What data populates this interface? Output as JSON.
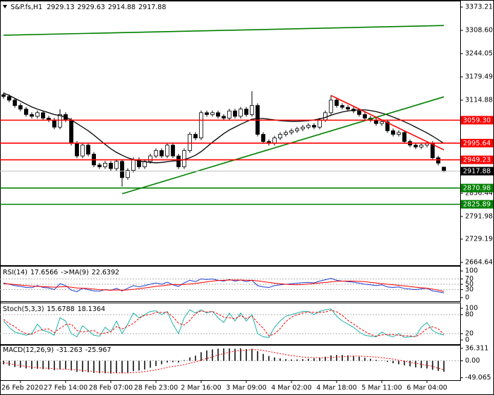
{
  "chart_data": [
    {
      "type": "candlestick",
      "title": "S&P.fs,H1",
      "categories": [
        null,
        null,
        null,
        "26 Feb 2020",
        null,
        null,
        null,
        null,
        null,
        null,
        null,
        "27 Feb 14:00",
        null,
        null,
        null,
        null,
        null,
        null,
        null,
        "28 Feb 07:00",
        null,
        null,
        null,
        null,
        null,
        null,
        null,
        "28 Feb 23:00",
        null,
        null,
        null,
        null,
        null,
        null,
        null,
        "2 Mar 16:00",
        null,
        null,
        null,
        null,
        null,
        null,
        null,
        "3 Mar 09:00",
        null,
        null,
        null,
        null,
        null,
        null,
        null,
        "4 Mar 02:00",
        null,
        null,
        null,
        null,
        null,
        null,
        null,
        "4 Mar 18:00",
        null,
        null,
        null,
        null,
        null,
        null,
        null,
        "5 Mar 11:00",
        null,
        null,
        null,
        null,
        null,
        null,
        null,
        "6 Mar 04:00",
        null,
        null,
        null
      ],
      "open": [
        3130,
        3125,
        3115,
        3100,
        3090,
        3075,
        3070,
        3080,
        3065,
        3060,
        3040,
        3075,
        3060,
        2995,
        2960,
        2990,
        2965,
        2935,
        2930,
        2940,
        2925,
        2945,
        2900,
        2920,
        2950,
        2930,
        2945,
        2960,
        2975,
        2960,
        2990,
        2960,
        2930,
        2975,
        3020,
        3010,
        3080,
        3075,
        3080,
        3070,
        3065,
        3085,
        3070,
        3090,
        3075,
        3100,
        3020,
        3000,
        2995,
        3010,
        3020,
        3025,
        3030,
        3035,
        3040,
        3045,
        3040,
        3060,
        3080,
        3115,
        3100,
        3095,
        3090,
        3085,
        3075,
        3065,
        3060,
        3050,
        3055,
        3030,
        3020,
        3025,
        3000,
        2990,
        2985,
        2990,
        2995,
        2955,
        2929.13
      ],
      "high": [
        3136,
        3131,
        3121,
        3106,
        3096,
        3081,
        3086,
        3086,
        3071,
        3066,
        3090,
        3081,
        3066,
        3001,
        2996,
        2996,
        2971,
        2941,
        2946,
        2946,
        2951,
        2951,
        2926,
        2956,
        2956,
        2951,
        2966,
        2981,
        2981,
        2996,
        2996,
        2966,
        2981,
        3026,
        3026,
        3086,
        3086,
        3086,
        3086,
        3076,
        3091,
        3091,
        3096,
        3096,
        3140,
        3106,
        3026,
        3006,
        3016,
        3026,
        3031,
        3036,
        3041,
        3046,
        3051,
        3051,
        3066,
        3086,
        3128,
        3121,
        3106,
        3101,
        3096,
        3091,
        3081,
        3071,
        3066,
        3061,
        3061,
        3036,
        3031,
        3031,
        3006,
        2996,
        2996,
        3001,
        3001,
        2961,
        2929.63
      ],
      "low": [
        3119,
        3109,
        3094,
        3084,
        3069,
        3064,
        3064,
        3059,
        3054,
        3034,
        3034,
        3054,
        2989,
        2954,
        2954,
        2959,
        2929,
        2924,
        2924,
        2919,
        2919,
        2875,
        2894,
        2914,
        2924,
        2924,
        2939,
        2954,
        2954,
        2954,
        2954,
        2924,
        2924,
        2969,
        3004,
        3004,
        3069,
        3069,
        3064,
        3059,
        3059,
        3064,
        3064,
        3069,
        3069,
        3014,
        2994,
        2989,
        2989,
        3004,
        3014,
        3019,
        3024,
        3029,
        3034,
        3034,
        3034,
        3054,
        3074,
        3094,
        3089,
        3084,
        3079,
        3069,
        3059,
        3054,
        3044,
        3044,
        3024,
        3014,
        3014,
        2994,
        2984,
        2979,
        2979,
        2984,
        2949,
        2934,
        2914.88
      ],
      "close": [
        3125,
        3115,
        3100,
        3090,
        3075,
        3070,
        3080,
        3065,
        3060,
        3040,
        3075,
        3060,
        2995,
        2960,
        2990,
        2965,
        2935,
        2930,
        2940,
        2925,
        2945,
        2900,
        2920,
        2950,
        2930,
        2945,
        2960,
        2975,
        2960,
        2990,
        2960,
        2930,
        2975,
        3020,
        3010,
        3080,
        3075,
        3080,
        3070,
        3065,
        3085,
        3070,
        3090,
        3075,
        3100,
        3020,
        3000,
        2995,
        3010,
        3020,
        3025,
        3030,
        3035,
        3040,
        3045,
        3040,
        3060,
        3080,
        3115,
        3100,
        3095,
        3090,
        3085,
        3075,
        3065,
        3060,
        3050,
        3055,
        3030,
        3020,
        3025,
        3000,
        2990,
        2985,
        2990,
        2995,
        2955,
        2940,
        2917.88
      ],
      "ma": {
        "color": "#000000",
        "values": [
          3135,
          3128,
          3120,
          3112,
          3104,
          3096,
          3090,
          3085,
          3080,
          3075,
          3072,
          3068,
          3060,
          3050,
          3040,
          3030,
          3018,
          3005,
          2992,
          2980,
          2970,
          2962,
          2955,
          2950,
          2946,
          2944,
          2942,
          2941,
          2942,
          2944,
          2946,
          2947,
          2950,
          2955,
          2962,
          2972,
          2985,
          2998,
          3010,
          3022,
          3032,
          3040,
          3048,
          3055,
          3062,
          3064,
          3064,
          3062,
          3060,
          3058,
          3057,
          3056,
          3056,
          3057,
          3058,
          3060,
          3063,
          3067,
          3073,
          3078,
          3082,
          3085,
          3087,
          3088,
          3088,
          3086,
          3083,
          3079,
          3074,
          3068,
          3062,
          3055,
          3048,
          3040,
          3032,
          3024,
          3015,
          3005,
          2995
        ]
      },
      "ylim": [
        2656.79,
        3388.91
      ],
      "yticks": [
        3373.21,
        {
          "value": 3308.6,
          "label": "3308.60"
        },
        3244.05,
        3179.49,
        3114.88,
        2856.44,
        2791.98,
        2729.19,
        2664.64
      ],
      "levels": [
        {
          "value": 3059.3,
          "label": "3059.30",
          "color": "#ff0000"
        },
        {
          "value": 2995.64,
          "color": "#ff0000"
        },
        {
          "value": 2949.23,
          "color": "#ff0000"
        },
        {
          "value": 2917.88,
          "color": "#c0c0c0"
        },
        {
          "value": 2870.98,
          "color": "#008000"
        },
        {
          "value": 2825.89,
          "color": "#008000"
        }
      ],
      "trendlines": [
        {
          "start": [
            0,
            3295
          ],
          "end": [
            78,
            3322
          ],
          "color": "#008000"
        },
        {
          "start": [
            21,
            2855
          ],
          "end": [
            78,
            3124
          ],
          "color": "#008000"
        },
        {
          "start": [
            58,
            3128
          ],
          "end": [
            78,
            2977
          ],
          "color": "#ff0000"
        }
      ]
    },
    {
      "type": "line",
      "title": "RSI(14)",
      "title2": "->MA(9)",
      "ylim": [
        -13.5,
        116.2
      ],
      "yticks": [
        100,
        70,
        50,
        30,
        0
      ],
      "series": [
        {
          "color": "#1c3fd0",
          "values": [
            55,
            50,
            45,
            42,
            38,
            37,
            45,
            38,
            36,
            30,
            52,
            45,
            28,
            22,
            35,
            30,
            25,
            24,
            30,
            27,
            35,
            25,
            35,
            45,
            40,
            45,
            50,
            55,
            50,
            58,
            48,
            42,
            55,
            65,
            60,
            70,
            68,
            70,
            65,
            62,
            68,
            62,
            66,
            60,
            65,
            45,
            40,
            38,
            45,
            48,
            50,
            52,
            54,
            56,
            57,
            55,
            62,
            67,
            72,
            65,
            62,
            60,
            58,
            54,
            50,
            48,
            45,
            48,
            40,
            38,
            40,
            34,
            32,
            30,
            33,
            35,
            25,
            22,
            17.6566
          ]
        },
        {
          "color": "#ff0000",
          "values": [
            52,
            51,
            49,
            47,
            45,
            43,
            42,
            41,
            40,
            39,
            40,
            41,
            39,
            36,
            35,
            34,
            32,
            30,
            29,
            28,
            29,
            28,
            29,
            31,
            33,
            36,
            39,
            42,
            44,
            47,
            49,
            49,
            49,
            51,
            53,
            56,
            59,
            62,
            64,
            65,
            66,
            66,
            66,
            65,
            65,
            63,
            60,
            57,
            54,
            52,
            50,
            49,
            48,
            49,
            51,
            53,
            55,
            57,
            59,
            61,
            62,
            62,
            62,
            61,
            60,
            57,
            55,
            52,
            50,
            48,
            46,
            44,
            41,
            39,
            37,
            35,
            32,
            28,
            22.6392
          ]
        }
      ]
    },
    {
      "type": "line",
      "title": "Stoch(5,3,3)",
      "ylim": [
        -13.3,
        115.6
      ],
      "yticks": [
        100,
        80,
        20,
        0
      ],
      "series": [
        {
          "color": "#20b2aa",
          "values": [
            60,
            40,
            25,
            20,
            15,
            20,
            50,
            30,
            25,
            15,
            70,
            60,
            20,
            10,
            45,
            30,
            15,
            12,
            40,
            25,
            60,
            20,
            50,
            85,
            70,
            80,
            90,
            92,
            80,
            90,
            50,
            20,
            70,
            95,
            85,
            95,
            85,
            90,
            70,
            55,
            85,
            60,
            85,
            60,
            80,
            20,
            10,
            8,
            40,
            60,
            75,
            80,
            85,
            90,
            90,
            80,
            90,
            95,
            98,
            75,
            60,
            50,
            40,
            25,
            15,
            12,
            10,
            25,
            15,
            10,
            20,
            8,
            10,
            12,
            40,
            55,
            30,
            20,
            15.6788
          ]
        },
        {
          "color": "#ff0000",
          "dash": true,
          "values": [
            65,
            52,
            42,
            28,
            20,
            18,
            28,
            33,
            35,
            23,
            37,
            48,
            50,
            30,
            25,
            28,
            30,
            19,
            22,
            26,
            42,
            35,
            43,
            52,
            68,
            78,
            80,
            87,
            87,
            87,
            73,
            53,
            47,
            62,
            83,
            92,
            88,
            90,
            82,
            72,
            70,
            67,
            77,
            68,
            75,
            55,
            37,
            13,
            19,
            36,
            58,
            72,
            80,
            85,
            88,
            87,
            87,
            88,
            94,
            89,
            78,
            62,
            50,
            38,
            27,
            17,
            12,
            16,
            17,
            17,
            15,
            13,
            13,
            10,
            21,
            36,
            42,
            35,
            18.1364
          ]
        }
      ]
    },
    {
      "type": "bar",
      "title": "MACD(12,26,9)",
      "ylim": [
        -56,
        44
      ],
      "yticks": [
        36.311,
        {
          "value": 0,
          "label": "0.00"
        },
        -49.065
      ],
      "series": [
        {
          "kind": "bar",
          "color": "#404040",
          "values": [
            -10,
            -14,
            -18,
            -20,
            -22,
            -24,
            -23,
            -24,
            -25,
            -27,
            -24,
            -24,
            -28,
            -32,
            -32,
            -33,
            -35,
            -36,
            -36,
            -37,
            -35,
            -36,
            -34,
            -30,
            -28,
            -25,
            -20,
            -15,
            -10,
            -5,
            -4,
            -5,
            2,
            10,
            15,
            25,
            30,
            33,
            35,
            36,
            36,
            35,
            36,
            34,
            35,
            28,
            20,
            14,
            10,
            7,
            5,
            4,
            4,
            5,
            6,
            7,
            9,
            12,
            16,
            17,
            17,
            16,
            14,
            12,
            9,
            6,
            3,
            1,
            -3,
            -7,
            -10,
            -13,
            -16,
            -19,
            -21,
            -22,
            -26,
            -29,
            -31.263
          ]
        },
        {
          "kind": "line",
          "color": "#ff0000",
          "dash": true,
          "values": [
            -5,
            -8,
            -11,
            -14,
            -16,
            -18,
            -20,
            -21,
            -22,
            -23,
            -24,
            -24,
            -25,
            -26,
            -28,
            -29,
            -31,
            -32,
            -33,
            -34,
            -35,
            -35,
            -35,
            -34,
            -33,
            -31,
            -29,
            -26,
            -23,
            -19,
            -16,
            -14,
            -11,
            -7,
            -3,
            2,
            7,
            12,
            17,
            21,
            25,
            28,
            30,
            31,
            32,
            32,
            30,
            27,
            24,
            21,
            18,
            15,
            13,
            11,
            10,
            9,
            9,
            9,
            10,
            11,
            12,
            13,
            14,
            14,
            13,
            12,
            11,
            9,
            7,
            5,
            2,
            -1,
            -4,
            -7,
            -10,
            -13,
            -16,
            -21,
            -25.967
          ]
        }
      ]
    }
  ]
}
